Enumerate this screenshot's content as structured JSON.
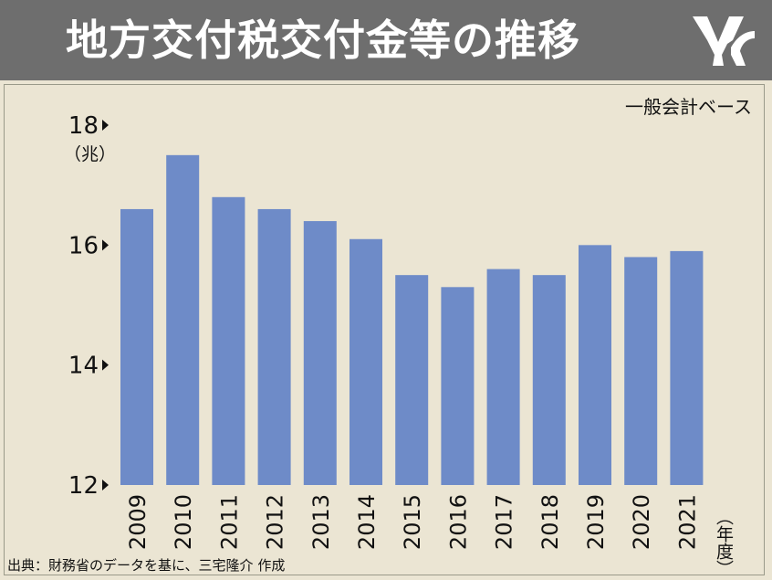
{
  "header": {
    "title": "地方交付税交付金等の推移",
    "logo_icon": "mk-logo-icon",
    "background_color": "#6e6e6e"
  },
  "basis_label": "一般会計ベース",
  "unit_label": "（兆）",
  "fiscal_year_label": "（年度）",
  "source": "出典：財務省のデータを基に、三宅隆介 作成",
  "chart_data": {
    "type": "bar",
    "title": "地方交付税交付金等の推移",
    "categories": [
      "2009",
      "2010",
      "2011",
      "2012",
      "2013",
      "2014",
      "2015",
      "2016",
      "2017",
      "2018",
      "2019",
      "2020",
      "2021"
    ],
    "values": [
      16.6,
      17.5,
      16.8,
      16.6,
      16.4,
      16.1,
      15.5,
      15.3,
      15.6,
      15.5,
      16.0,
      15.8,
      15.9
    ],
    "ylim": [
      12,
      18
    ],
    "yticks": [
      "12",
      "14",
      "16",
      "18"
    ],
    "xlabel": "（年度）",
    "ylabel": "（兆）",
    "bar_color": "#6e8bc8",
    "grid": false,
    "legend": "none"
  }
}
